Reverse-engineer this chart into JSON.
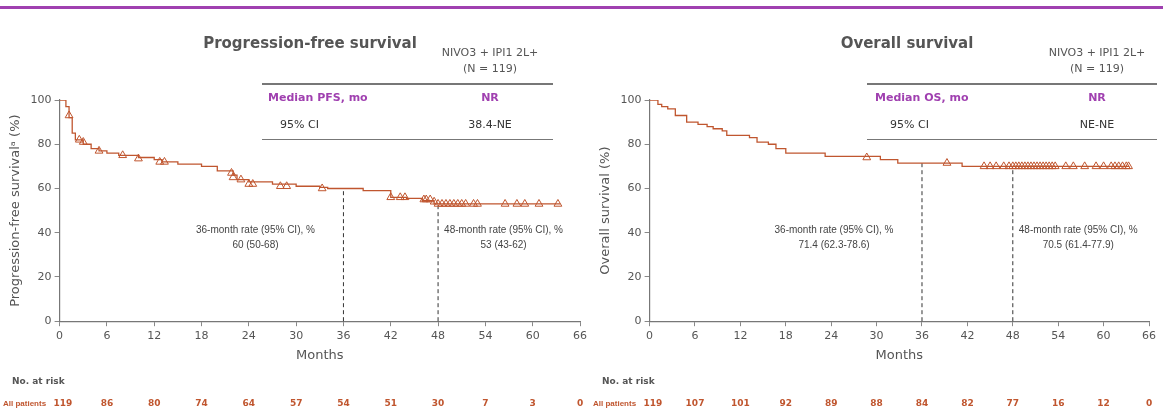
{
  "chart_data": [
    {
      "type": "step",
      "title": "Progression-free survival",
      "xlabel": "Months",
      "ylabel": "Progression-free survivalᵃ (%)",
      "xlim": [
        0,
        66
      ],
      "xticks": [
        0,
        6,
        12,
        18,
        24,
        30,
        36,
        42,
        48,
        54,
        60,
        66
      ],
      "ylim": [
        0,
        100
      ],
      "yticks": [
        0,
        20,
        40,
        60,
        80,
        100
      ],
      "grid": false,
      "series": [
        {
          "type": "step",
          "color": "#c0562f",
          "x": [
            0,
            0.8,
            1.2,
            1.6,
            2,
            3,
            4,
            5,
            6,
            7.5,
            10,
            12,
            13,
            15,
            18,
            20,
            22,
            22.5,
            24,
            27,
            30,
            33,
            34,
            38.5,
            42,
            44,
            46,
            47.5,
            63.5
          ],
          "values": [
            100,
            97,
            92,
            85,
            82,
            80,
            78,
            77,
            76,
            75,
            74,
            73,
            72,
            71,
            70,
            68,
            66,
            64,
            63,
            62,
            61,
            60.5,
            60,
            59,
            56,
            55.5,
            54.5,
            53,
            53
          ]
        },
        {
          "type": "scatter",
          "marker": "triangle",
          "color": "#c0562f",
          "x": [
            1.2,
            2.5,
            3,
            5,
            8,
            10,
            12.7,
            13.3,
            21.8,
            22,
            23,
            24,
            24.5,
            28,
            28.8,
            33.3,
            42,
            43.2,
            43.8,
            46.2,
            46.5,
            47,
            47.5,
            48,
            48.5,
            49,
            49.5,
            50,
            50.5,
            51,
            51.5,
            52.5,
            53,
            56.5,
            58,
            59,
            60.8,
            63.2
          ],
          "values": [
            93,
            82,
            81,
            77,
            75,
            73.5,
            72,
            72,
            67,
            65,
            64,
            62,
            62,
            61,
            61,
            60,
            56,
            56,
            56,
            55,
            55,
            55,
            54,
            53,
            53,
            53,
            53,
            53,
            53,
            53,
            53,
            53,
            53,
            53,
            53,
            53,
            53,
            53
          ]
        }
      ],
      "ref_lines": [
        {
          "axis": "x",
          "value": 36,
          "label": "36-month rate (95% CI), %\n60 (50-68)",
          "color": "#333333",
          "line_style": "dashed"
        },
        {
          "axis": "x",
          "value": 48,
          "label": "48-month rate (95% CI), %\n53 (43-62)",
          "color": "#333333",
          "line_style": "dashed"
        }
      ],
      "annotations": [
        "NIVO3 + IPI1 2L+",
        "(N = 119)",
        "Median PFS, mo",
        "NR",
        "95% CI",
        "38.4-NE",
        "No. at risk",
        "All patients",
        "119",
        "86",
        "80",
        "74",
        "64",
        "57",
        "54",
        "51",
        "30",
        "7",
        "3",
        "0"
      ]
    },
    {
      "type": "step",
      "title": "Overall survival",
      "xlabel": "Months",
      "ylabel": "Overall survival (%)",
      "xlim": [
        0,
        66
      ],
      "xticks": [
        0,
        6,
        12,
        18,
        24,
        30,
        36,
        42,
        48,
        54,
        60,
        66
      ],
      "ylim": [
        0,
        100
      ],
      "yticks": [
        0,
        20,
        40,
        60,
        80,
        100
      ],
      "grid": false,
      "series": [
        {
          "type": "step",
          "color": "#c0562f",
          "x": [
            0,
            1.1,
            1.6,
            2.4,
            3.4,
            4.9,
            6.4,
            7.6,
            8.4,
            9.6,
            10.2,
            13.2,
            14.2,
            15.7,
            16.7,
            18,
            23.2,
            30.5,
            32.8,
            41.3,
            63.4
          ],
          "values": [
            100,
            98,
            97,
            96,
            93,
            90,
            89,
            88,
            87,
            86,
            84,
            83,
            81,
            80,
            78,
            76,
            74.5,
            73,
            71.5,
            70,
            70
          ]
        },
        {
          "type": "scatter",
          "marker": "triangle",
          "color": "#c0562f",
          "x": [
            28.7,
            39.3,
            44.2,
            45,
            45.8,
            46.8,
            47.5,
            48,
            48.4,
            48.8,
            49.2,
            49.6,
            50,
            50.4,
            50.8,
            51.2,
            51.6,
            52,
            52.4,
            52.8,
            53.2,
            53.6,
            55,
            56,
            57.5,
            59,
            60,
            61,
            61.5,
            62,
            62.5,
            63,
            63.3
          ],
          "values": [
            74,
            71.5,
            70,
            70,
            70,
            70,
            70,
            70,
            70,
            70,
            70,
            70,
            70,
            70,
            70,
            70,
            70,
            70,
            70,
            70,
            70,
            70,
            70,
            70,
            70,
            70,
            70,
            70,
            70,
            70,
            70,
            70,
            70
          ]
        }
      ],
      "ref_lines": [
        {
          "axis": "x",
          "value": 36,
          "label": "36-month rate (95% CI), %\n71.4 (62.3-78.6)",
          "color": "#333333",
          "line_style": "dashed"
        },
        {
          "axis": "x",
          "value": 48,
          "label": "48-month rate (95% CI), %\n70.5 (61.4-77.9)",
          "color": "#333333",
          "line_style": "dashed"
        }
      ],
      "annotations": [
        "NIVO3 + IPI1 2L+",
        "(N = 119)",
        "Median OS, mo",
        "NR",
        "95% CI",
        "NE-NE",
        "No. at risk",
        "All patients",
        "119",
        "107",
        "101",
        "92",
        "89",
        "88",
        "84",
        "82",
        "77",
        "16",
        "12",
        "0"
      ]
    }
  ]
}
